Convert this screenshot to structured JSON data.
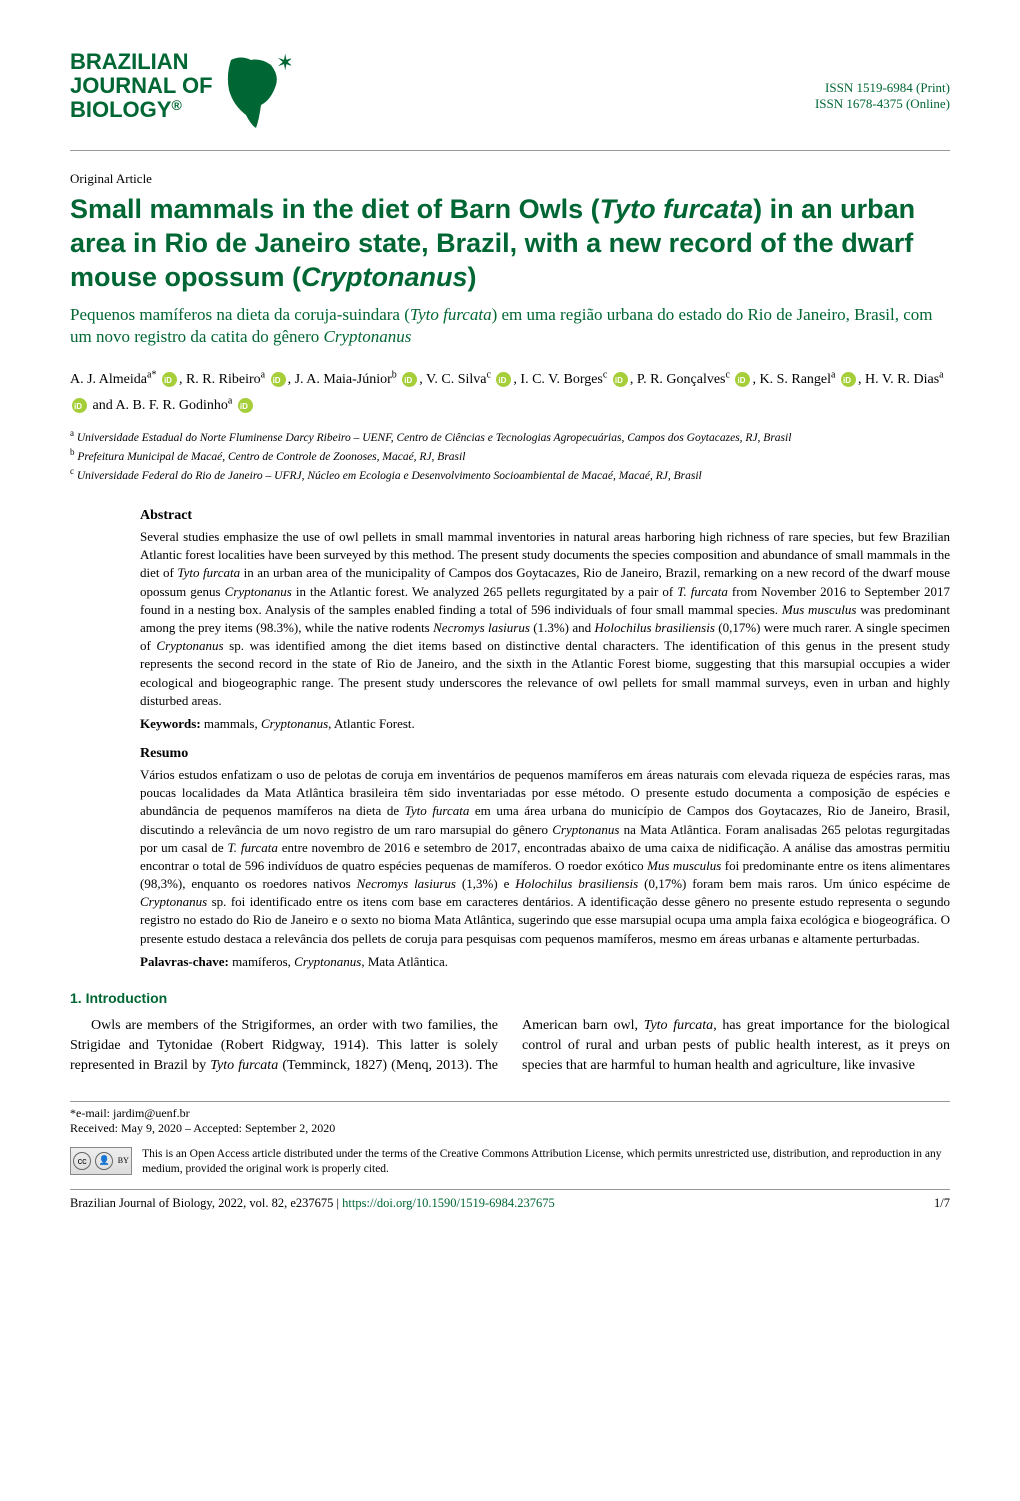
{
  "journal": {
    "name_line1": "BRAZILIAN",
    "name_line2": "JOURNAL OF",
    "name_line3": "BIOLOGY",
    "trademark": "®",
    "issn_print": "ISSN 1519-6984 (Print)",
    "issn_online": "ISSN 1678-4375 (Online)",
    "logo_color": "#006633"
  },
  "article_type": "Original Article",
  "title": {
    "pre": "Small mammals in the diet of Barn Owls (",
    "ital1": "Tyto furcata",
    "mid": ") in an urban area in Rio de Janeiro state, Brazil, with a new record of the dwarf mouse opossum (",
    "ital2": "Cryptonanus",
    "post": ")"
  },
  "subtitle": {
    "pre": "Pequenos mamíferos na dieta da coruja-suindara (",
    "ital1": "Tyto furcata",
    "mid": ") em uma região urbana do estado do Rio de Janeiro, Brasil, com um novo registro da catita do gênero ",
    "ital2": "Cryptonanus",
    "post": ""
  },
  "authors": [
    {
      "name": "A. J. Almeida",
      "aff": "a",
      "star": "*",
      "orcid": true
    },
    {
      "name": "R. R. Ribeiro",
      "aff": "a",
      "orcid": true
    },
    {
      "name": "J. A. Maia-Júnior",
      "aff": "b",
      "orcid": true
    },
    {
      "name": "V. C. Silva",
      "aff": "c",
      "orcid": true
    },
    {
      "name": "I. C. V. Borges",
      "aff": "c",
      "orcid": true
    },
    {
      "name": "P. R. Gonçalves",
      "aff": "c",
      "orcid": true
    },
    {
      "name": "K. S. Rangel",
      "aff": "a",
      "orcid": true
    },
    {
      "name": "H. V. R. Dias",
      "aff": "a",
      "orcid": true
    },
    {
      "name": "A. B. F. R. Godinho",
      "aff": "a",
      "orcid": true,
      "last_and": true
    }
  ],
  "affiliations": [
    {
      "key": "a",
      "text": "Universidade Estadual do Norte Fluminense Darcy Ribeiro – UENF, Centro de Ciências e Tecnologias Agropecuárias, Campos dos Goytacazes, RJ, Brasil"
    },
    {
      "key": "b",
      "text": "Prefeitura Municipal de Macaé, Centro de Controle de Zoonoses, Macaé, RJ, Brasil"
    },
    {
      "key": "c",
      "text": "Universidade Federal do Rio de Janeiro – UFRJ, Núcleo em Ecologia e Desenvolvimento Socioambiental de Macaé, Macaé, RJ, Brasil"
    }
  ],
  "abstract_en": {
    "heading": "Abstract",
    "text_parts": [
      {
        "t": "Several studies emphasize the use of owl pellets in small mammal inventories in natural areas harboring high richness of rare species, but few Brazilian Atlantic forest localities have been surveyed by this method. The present study documents the species composition and abundance of small mammals in the diet of "
      },
      {
        "i": "Tyto furcata"
      },
      {
        "t": " in an urban area of the municipality of Campos dos Goytacazes, Rio de Janeiro, Brazil, remarking on a new record of the dwarf mouse opossum genus "
      },
      {
        "i": "Cryptonanus"
      },
      {
        "t": " in the Atlantic forest. We analyzed 265 pellets regurgitated by a pair of "
      },
      {
        "i": "T. furcata"
      },
      {
        "t": " from November 2016 to September 2017 found in a nesting box. Analysis of the samples enabled finding a total of 596 individuals of four small mammal species. "
      },
      {
        "i": "Mus musculus"
      },
      {
        "t": " was predominant among the prey items (98.3%), while the native rodents "
      },
      {
        "i": "Necromys lasiurus"
      },
      {
        "t": " (1.3%) and "
      },
      {
        "i": "Holochilus brasiliensis"
      },
      {
        "t": " (0,17%) were much rarer. A single specimen of "
      },
      {
        "i": "Cryptonanus"
      },
      {
        "t": " sp. was identified among the diet items based on distinctive dental characters. The identification of this genus in the present study represents the second record in the state of Rio de Janeiro, and the sixth in the Atlantic Forest biome, suggesting that this marsupial occupies a wider ecological and biogeographic range. The present study underscores the relevance of owl pellets for small mammal surveys, even in urban and highly disturbed areas."
      }
    ],
    "keywords_label": "Keywords:",
    "keywords_pre": " mammals, ",
    "keywords_ital": "Cryptonanus",
    "keywords_post": ", Atlantic Forest."
  },
  "abstract_pt": {
    "heading": "Resumo",
    "text_parts": [
      {
        "t": "Vários estudos enfatizam o uso de pelotas de coruja em inventários de pequenos mamíferos em áreas naturais com elevada riqueza de espécies raras, mas poucas localidades da Mata Atlântica brasileira têm sido inventariadas por esse método. O presente estudo documenta a composição de espécies e abundância de pequenos mamíferos na dieta de "
      },
      {
        "i": "Tyto furcata"
      },
      {
        "t": " em uma área urbana do município de Campos dos Goytacazes, Rio de Janeiro, Brasil, discutindo a relevância de um novo registro de um raro marsupial do gênero "
      },
      {
        "i": "Cryptonanus"
      },
      {
        "t": " na Mata Atlântica. Foram analisadas 265 pelotas regurgitadas por um casal de "
      },
      {
        "i": "T. furcata"
      },
      {
        "t": " entre novembro de 2016 e setembro de 2017, encontradas abaixo de uma caixa de nidificação. A análise das amostras permitiu encontrar o total de 596 indivíduos de quatro espécies pequenas de mamíferos. O roedor exótico "
      },
      {
        "i": "Mus musculus"
      },
      {
        "t": " foi predominante entre os itens alimentares (98,3%), enquanto os roedores nativos "
      },
      {
        "i": "Necromys lasiurus"
      },
      {
        "t": " (1,3%) e "
      },
      {
        "i": "Holochilus brasiliensis"
      },
      {
        "t": " (0,17%) foram bem mais raros. Um único espécime de "
      },
      {
        "i": "Cryptonanus"
      },
      {
        "t": " sp. foi identificado entre os itens com base em caracteres dentários. A identificação desse gênero no presente estudo representa o segundo registro no estado do Rio de Janeiro e o sexto no bioma Mata Atlântica, sugerindo que esse marsupial ocupa uma ampla faixa ecológica e biogeográfica. O presente estudo destaca a relevância dos pellets de coruja para pesquisas com pequenos mamíferos, mesmo em áreas urbanas e altamente perturbadas."
      }
    ],
    "keywords_label": "Palavras-chave:",
    "keywords_pre": " mamíferos, ",
    "keywords_ital": "Cryptonanus",
    "keywords_post": ", Mata Atlântica."
  },
  "section_heading": "1. Introduction",
  "body": {
    "p1_pre": "Owls are members of the Strigiformes, an order with two families, the Strigidae and Tytonidae (Robert Ridgway, 1914). This latter is solely represented in Brazil by ",
    "p1_ital": "Tyto furcata",
    "p1_mid": " (Temminck, 1827) (Menq, 2013). The American barn owl, ",
    "p1_ital2": "Tyto furcata",
    "p1_post": ", has great importance for the biological control of rural and urban pests of public health interest, as it preys on species that are harmful to human health and agriculture, like invasive"
  },
  "footer": {
    "email_label": "*e-mail: ",
    "email": "jardim@uenf.br",
    "dates": "Received: May 9, 2020 – Accepted: September 2, 2020",
    "cc_label": "cc",
    "by_label": "BY",
    "license_text": "This is an Open Access article distributed under the terms of the Creative Commons Attribution License, which permits unrestricted use, distribution, and reproduction in any medium, provided the original work is properly cited.",
    "citation_pre": "Brazilian Journal of Biology, 2022, vol. 82, e237675  |  ",
    "doi": "https://doi.org/10.1590/1519-6984.237675",
    "page": "1/7"
  }
}
